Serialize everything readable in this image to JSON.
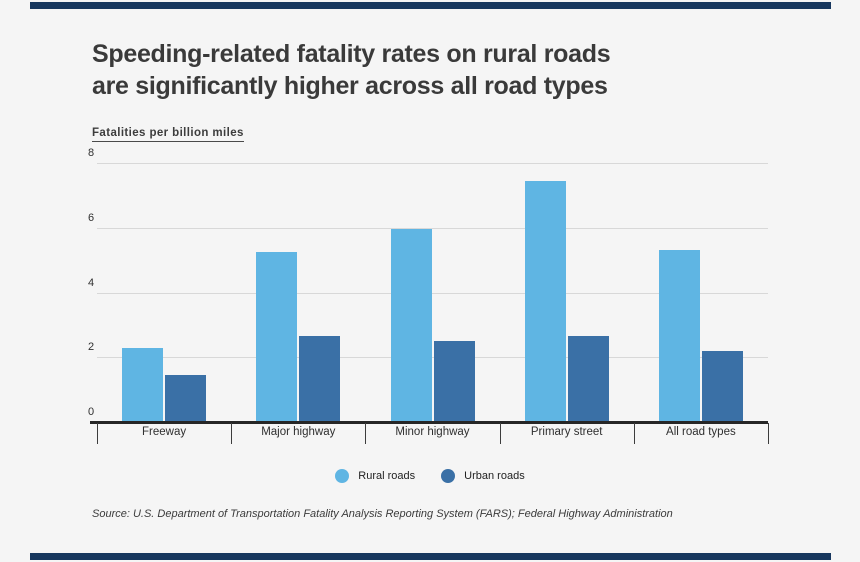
{
  "page": {
    "background": "#f5f5f5",
    "accent_bar_color": "#17375e"
  },
  "header": {
    "title_line1": "Speeding-related fatality rates on rural roads",
    "title_line2": "are significantly higher across all road types",
    "axis_note": "Fatalities per billion miles"
  },
  "chart_data": {
    "type": "bar",
    "title": "Speeding-related fatality rates on rural roads are significantly higher across all road types",
    "ylabel": "Fatalities per billion miles",
    "xlabel": "",
    "categories": [
      "Freeway",
      "Major highway",
      "Minor highway",
      "Primary street",
      "All road types"
    ],
    "series": [
      {
        "name": "Rural roads",
        "color": "#5fb5e3",
        "values": [
          2.3,
          5.25,
          5.95,
          7.45,
          5.3
        ]
      },
      {
        "name": "Urban roads",
        "color": "#3a70a6",
        "values": [
          1.45,
          2.65,
          2.5,
          2.65,
          2.2
        ]
      }
    ],
    "ylim": [
      0,
      8
    ],
    "yticks": [
      0,
      2,
      4,
      6,
      8
    ],
    "grid": true,
    "legend_position": "bottom",
    "gridline_color": "#d8d8d8",
    "axis_line_color": "#262626"
  },
  "footer": {
    "source": "Source: U.S. Department of Transportation Fatality Analysis Reporting System (FARS); Federal Highway Administration"
  }
}
